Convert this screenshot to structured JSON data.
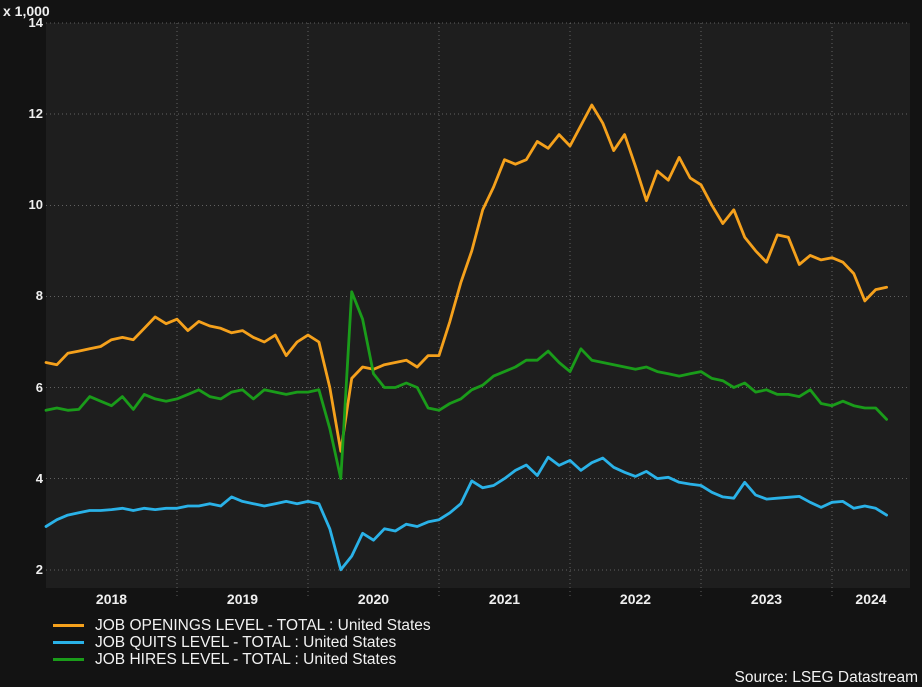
{
  "source": {
    "text": "Source: LSEG Datastream"
  },
  "legend_note": "legend labels mirror chart_data.series names",
  "chart_data": {
    "type": "line",
    "title": "",
    "unit_label": "x 1,000",
    "xlabel": "",
    "ylabel": "",
    "x_start": "2018-01",
    "points_per_year": 12,
    "x_tick_labels": [
      "2018",
      "2019",
      "2020",
      "2021",
      "2022",
      "2023",
      "2024"
    ],
    "y_ticks": [
      2,
      4,
      6,
      8,
      10,
      12,
      14
    ],
    "ylim": [
      1.6,
      14
    ],
    "grid": "dotted",
    "legend_position": "bottom-left",
    "background": {
      "outer": "#131313",
      "plot": "#1e1e1e",
      "gridline": "#9a9a9a",
      "text": "#efefef"
    },
    "series": [
      {
        "name": "JOB OPENINGS LEVEL - TOTAL : United States",
        "color": "#F5A11C",
        "values": [
          6.55,
          6.5,
          6.75,
          6.8,
          6.85,
          6.9,
          7.05,
          7.1,
          7.05,
          7.3,
          7.55,
          7.4,
          7.5,
          7.25,
          7.45,
          7.35,
          7.3,
          7.2,
          7.25,
          7.1,
          7.0,
          7.15,
          6.7,
          7.0,
          7.15,
          7.0,
          6.0,
          4.6,
          6.2,
          6.45,
          6.4,
          6.5,
          6.55,
          6.6,
          6.45,
          6.7,
          6.7,
          7.45,
          8.3,
          9.0,
          9.9,
          10.4,
          11.0,
          10.9,
          11.0,
          11.4,
          11.25,
          11.55,
          11.3,
          11.75,
          12.2,
          11.8,
          11.2,
          11.55,
          10.85,
          10.1,
          10.75,
          10.55,
          11.05,
          10.6,
          10.45,
          10.0,
          9.6,
          9.9,
          9.3,
          9.0,
          8.75,
          9.35,
          9.3,
          8.7,
          8.9,
          8.8,
          8.85,
          8.75,
          8.5,
          7.9,
          8.15,
          8.2
        ]
      },
      {
        "name": "JOB QUITS LEVEL - TOTAL : United States",
        "color": "#2AB2E8",
        "values": [
          2.95,
          3.1,
          3.2,
          3.25,
          3.3,
          3.3,
          3.32,
          3.35,
          3.3,
          3.35,
          3.32,
          3.35,
          3.35,
          3.4,
          3.4,
          3.45,
          3.4,
          3.6,
          3.5,
          3.45,
          3.4,
          3.45,
          3.5,
          3.45,
          3.5,
          3.45,
          2.9,
          2.0,
          2.3,
          2.8,
          2.65,
          2.9,
          2.85,
          3.0,
          2.95,
          3.05,
          3.1,
          3.25,
          3.45,
          3.95,
          3.8,
          3.85,
          4.0,
          4.18,
          4.3,
          4.07,
          4.47,
          4.29,
          4.4,
          4.18,
          4.35,
          4.45,
          4.25,
          4.14,
          4.05,
          4.16,
          4.0,
          4.03,
          3.92,
          3.88,
          3.85,
          3.7,
          3.6,
          3.57,
          3.92,
          3.64,
          3.55,
          3.57,
          3.59,
          3.61,
          3.48,
          3.37,
          3.48,
          3.5,
          3.35,
          3.4,
          3.35,
          3.2
        ]
      },
      {
        "name": "JOB HIRES LEVEL - TOTAL : United States",
        "color": "#1A9C1A",
        "values": [
          5.5,
          5.55,
          5.5,
          5.52,
          5.8,
          5.7,
          5.6,
          5.8,
          5.52,
          5.85,
          5.75,
          5.7,
          5.75,
          5.85,
          5.95,
          5.8,
          5.75,
          5.9,
          5.95,
          5.75,
          5.95,
          5.9,
          5.85,
          5.9,
          5.9,
          5.95,
          5.1,
          4.0,
          8.1,
          7.5,
          6.3,
          6.0,
          6.0,
          6.1,
          6.0,
          5.55,
          5.5,
          5.65,
          5.75,
          5.95,
          6.05,
          6.25,
          6.35,
          6.45,
          6.6,
          6.6,
          6.8,
          6.55,
          6.35,
          6.85,
          6.6,
          6.55,
          6.5,
          6.45,
          6.4,
          6.45,
          6.35,
          6.3,
          6.25,
          6.3,
          6.35,
          6.2,
          6.15,
          6.0,
          6.1,
          5.9,
          5.95,
          5.85,
          5.85,
          5.8,
          5.95,
          5.65,
          5.6,
          5.7,
          5.6,
          5.55,
          5.55,
          5.3
        ]
      }
    ]
  }
}
